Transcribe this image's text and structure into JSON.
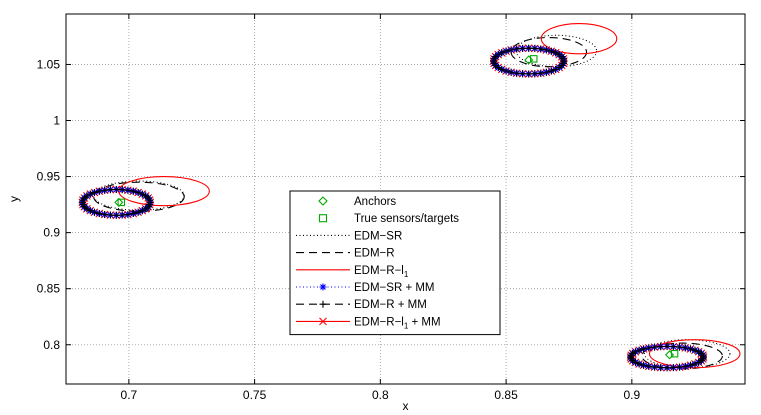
{
  "chart_data": {
    "type": "scatter",
    "xlabel": "x",
    "ylabel": "y",
    "xlim": [
      0.675,
      0.945
    ],
    "ylim": [
      0.765,
      1.095
    ],
    "xticks": [
      0.7,
      0.75,
      0.8,
      0.85,
      0.9
    ],
    "xtick_labels": [
      "0.7",
      "0.75",
      "0.8",
      "0.85",
      "0.9"
    ],
    "yticks": [
      0.8,
      0.85,
      0.9,
      0.95,
      1.0,
      1.05
    ],
    "ytick_labels": [
      "0.8",
      "0.85",
      "0.9",
      "0.95",
      "1",
      "1.05"
    ],
    "grid": true,
    "legend_position": "center",
    "legend": [
      {
        "key": "anchors",
        "label": "Anchors",
        "color": "#00aa00",
        "marker": "diamond",
        "line": "none"
      },
      {
        "key": "true",
        "label": "True sensors/targets",
        "color": "#00aa00",
        "marker": "square",
        "line": "none"
      },
      {
        "key": "edm_sr",
        "label": "EDM−SR",
        "color": "#000000",
        "marker": "none",
        "line": "dotted"
      },
      {
        "key": "edm_r",
        "label": "EDM−R",
        "color": "#000000",
        "marker": "none",
        "line": "dashed"
      },
      {
        "key": "edm_rl1",
        "label": "EDM−R−l",
        "subscript": "1",
        "color": "#ff0000",
        "marker": "none",
        "line": "solid"
      },
      {
        "key": "edm_sr_mm",
        "label": "EDM−SR + MM",
        "color": "#0000ff",
        "marker": "asterisk",
        "line": "dotted"
      },
      {
        "key": "edm_r_mm",
        "label": "EDM−R + MM",
        "color": "#000000",
        "marker": "plus",
        "line": "dashed"
      },
      {
        "key": "edm_rl1_mm",
        "label": "EDM−R−l",
        "subscript": "1",
        "suffix": " + MM",
        "color": "#ff0000",
        "marker": "cross",
        "line": "solid"
      }
    ],
    "true_points": [
      {
        "x": 0.697,
        "y": 0.927
      },
      {
        "x": 0.861,
        "y": 1.055
      },
      {
        "x": 0.917,
        "y": 0.792
      }
    ],
    "anchor_points": [
      {
        "x": 0.696,
        "y": 0.927
      },
      {
        "x": 0.859,
        "y": 1.054
      },
      {
        "x": 0.915,
        "y": 0.791
      }
    ],
    "ellipses": [
      {
        "series": "edm_sr",
        "cx": 0.704,
        "cy": 0.933,
        "rx": 0.018,
        "ry": 0.013
      },
      {
        "series": "edm_r",
        "cx": 0.704,
        "cy": 0.932,
        "rx": 0.018,
        "ry": 0.013
      },
      {
        "series": "edm_rl1",
        "cx": 0.714,
        "cy": 0.937,
        "rx": 0.018,
        "ry": 0.013
      },
      {
        "series": "edm_sr_mm",
        "cx": 0.695,
        "cy": 0.927,
        "rx": 0.0135,
        "ry": 0.0115
      },
      {
        "series": "edm_r_mm",
        "cx": 0.695,
        "cy": 0.927,
        "rx": 0.0135,
        "ry": 0.0115
      },
      {
        "series": "edm_rl1_mm",
        "cx": 0.695,
        "cy": 0.927,
        "rx": 0.0135,
        "ry": 0.0115
      },
      {
        "series": "edm_sr",
        "cx": 0.87,
        "cy": 1.062,
        "rx": 0.016,
        "ry": 0.014
      },
      {
        "series": "edm_r",
        "cx": 0.867,
        "cy": 1.061,
        "rx": 0.015,
        "ry": 0.013
      },
      {
        "series": "edm_rl1",
        "cx": 0.879,
        "cy": 1.073,
        "rx": 0.015,
        "ry": 0.0135
      },
      {
        "series": "edm_sr_mm",
        "cx": 0.859,
        "cy": 1.053,
        "rx": 0.014,
        "ry": 0.0115
      },
      {
        "series": "edm_r_mm",
        "cx": 0.859,
        "cy": 1.053,
        "rx": 0.014,
        "ry": 0.0115
      },
      {
        "series": "edm_rl1_mm",
        "cx": 0.859,
        "cy": 1.053,
        "rx": 0.014,
        "ry": 0.0115
      },
      {
        "series": "edm_sr",
        "cx": 0.922,
        "cy": 0.792,
        "rx": 0.017,
        "ry": 0.0125
      },
      {
        "series": "edm_r",
        "cx": 0.92,
        "cy": 0.79,
        "rx": 0.016,
        "ry": 0.0115
      },
      {
        "series": "edm_rl1",
        "cx": 0.925,
        "cy": 0.792,
        "rx": 0.018,
        "ry": 0.0125
      },
      {
        "series": "edm_sr_mm",
        "cx": 0.914,
        "cy": 0.789,
        "rx": 0.0145,
        "ry": 0.0095
      },
      {
        "series": "edm_r_mm",
        "cx": 0.914,
        "cy": 0.789,
        "rx": 0.0145,
        "ry": 0.0095
      },
      {
        "series": "edm_rl1_mm",
        "cx": 0.914,
        "cy": 0.789,
        "rx": 0.0145,
        "ry": 0.0095
      }
    ]
  }
}
